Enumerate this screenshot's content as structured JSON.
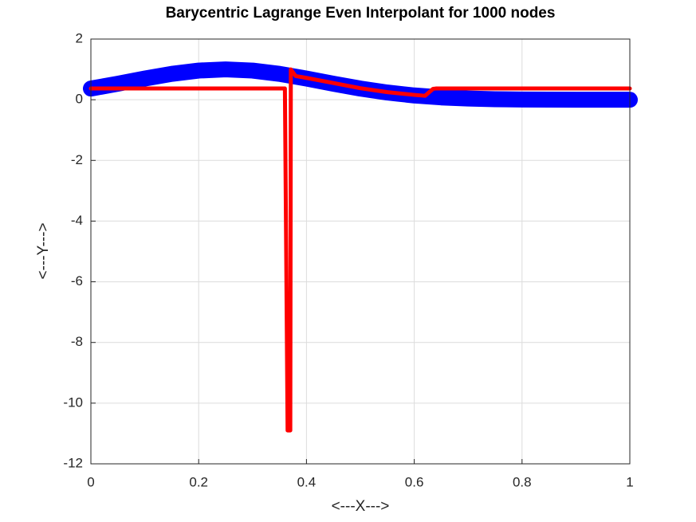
{
  "chart_data": {
    "type": "line",
    "title": "Barycentric Lagrange Even Interpolant for 1000 nodes",
    "xlabel": "<---X--->",
    "ylabel": "<---Y--->",
    "xlim": [
      0,
      1
    ],
    "ylim": [
      -12,
      2
    ],
    "xticks": [
      0,
      0.2,
      0.4,
      0.6,
      0.8,
      1
    ],
    "yticks": [
      -12,
      -10,
      -8,
      -6,
      -4,
      -2,
      0,
      2
    ],
    "grid": true,
    "series": [
      {
        "color": "#0000ff",
        "x": [
          0,
          0.05,
          0.1,
          0.15,
          0.2,
          0.25,
          0.3,
          0.35,
          0.4,
          0.45,
          0.5,
          0.55,
          0.6,
          0.65,
          0.7,
          0.75,
          0.8,
          0.85,
          0.9,
          0.95,
          1
        ],
        "values": [
          0.368,
          0.527,
          0.698,
          0.852,
          0.961,
          1,
          0.961,
          0.852,
          0.698,
          0.527,
          0.368,
          0.237,
          0.141,
          0.077,
          0.039,
          0.018,
          0.008,
          0.003,
          0.001,
          0,
          0
        ]
      },
      {
        "color": "#ff0000",
        "x": [
          0,
          0.36,
          0.365,
          0.37,
          0.371,
          0.38,
          0.4,
          0.45,
          0.5,
          0.55,
          0.6,
          0.62,
          0.635,
          0.64,
          1
        ],
        "values": [
          0.37,
          0.37,
          -10.9,
          -10.9,
          1.0,
          0.78,
          0.72,
          0.55,
          0.38,
          0.25,
          0.16,
          0.13,
          0.36,
          0.37,
          0.37
        ]
      }
    ]
  }
}
